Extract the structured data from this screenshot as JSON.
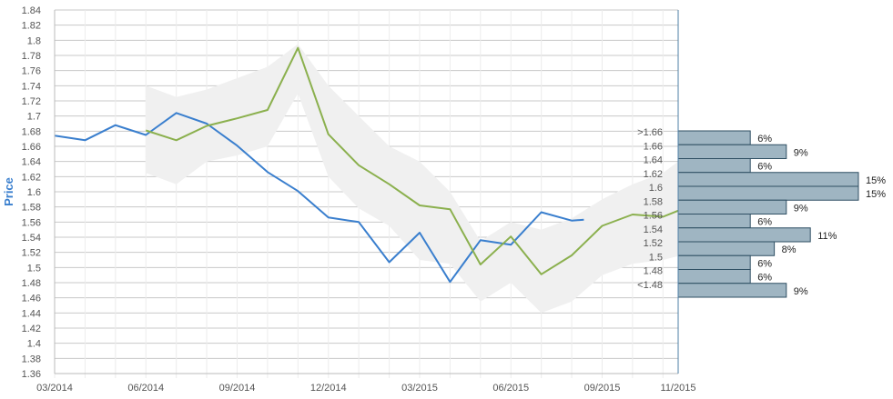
{
  "chart_data": {
    "type": "line",
    "ylabel": "Price",
    "ylim": [
      1.36,
      1.84
    ],
    "y_ticks": [
      "1.36",
      "1.38",
      "1.4",
      "1.42",
      "1.44",
      "1.46",
      "1.48",
      "1.5",
      "1.52",
      "1.54",
      "1.56",
      "1.58",
      "1.6",
      "1.62",
      "1.64",
      "1.66",
      "1.68",
      "1.7",
      "1.72",
      "1.74",
      "1.76",
      "1.78",
      "1.8",
      "1.82",
      "1.84"
    ],
    "x_ticks": [
      "03/2014",
      "06/2014",
      "09/2014",
      "12/2014",
      "03/2015",
      "06/2015",
      "09/2015",
      "11/2015"
    ],
    "x_tick_month_index": [
      0,
      3,
      6,
      9,
      12,
      15,
      18,
      20.5
    ],
    "grid": true,
    "series": [
      {
        "color": "#3a7fce",
        "x_month_index": [
          0,
          1,
          2,
          3,
          4,
          5,
          6,
          7,
          8,
          9,
          10,
          11,
          12,
          13,
          14,
          15,
          16,
          17,
          17.4
        ],
        "values": [
          1.674,
          1.668,
          1.688,
          1.675,
          1.704,
          1.69,
          1.661,
          1.626,
          1.601,
          1.566,
          1.56,
          1.507,
          1.546,
          1.481,
          1.536,
          1.53,
          1.573,
          1.562,
          1.563
        ]
      },
      {
        "color": "#8bb04e",
        "x_month_index": [
          3,
          4,
          5,
          6,
          7,
          8,
          9,
          10,
          11,
          12,
          13,
          14,
          15,
          16,
          17,
          18,
          19,
          20,
          20.5
        ],
        "values": [
          1.681,
          1.668,
          1.687,
          1.697,
          1.708,
          1.79,
          1.676,
          1.635,
          1.61,
          1.582,
          1.577,
          1.504,
          1.541,
          1.491,
          1.516,
          1.555,
          1.57,
          1.567,
          1.575
        ]
      }
    ],
    "band": {
      "color": "#f0f0f0",
      "x_month_index": [
        3,
        4,
        5,
        6,
        7,
        8,
        9,
        10,
        11,
        12,
        13,
        14,
        15,
        16,
        17,
        18,
        19,
        20,
        20.5
      ],
      "upper": [
        1.74,
        1.725,
        1.735,
        1.75,
        1.765,
        1.795,
        1.74,
        1.7,
        1.66,
        1.64,
        1.6,
        1.535,
        1.56,
        1.55,
        1.565,
        1.59,
        1.61,
        1.625,
        1.64
      ],
      "lower": [
        1.625,
        1.61,
        1.64,
        1.648,
        1.66,
        1.73,
        1.62,
        1.578,
        1.555,
        1.51,
        1.505,
        1.455,
        1.48,
        1.44,
        1.455,
        1.49,
        1.505,
        1.51,
        1.515
      ]
    },
    "histogram": {
      "color": "#9fb5c2",
      "bins": [
        {
          "label": ">1.66",
          "percent": "6%",
          "value": 6
        },
        {
          "label": "1.66",
          "percent": "9%",
          "value": 9
        },
        {
          "label": "1.64",
          "percent": "6%",
          "value": 6
        },
        {
          "label": "1.62",
          "percent": "15%",
          "value": 15
        },
        {
          "label": "1.6",
          "percent": "15%",
          "value": 15
        },
        {
          "label": "1.58",
          "percent": "9%",
          "value": 9
        },
        {
          "label": "1.56",
          "percent": "6%",
          "value": 6
        },
        {
          "label": "1.54",
          "percent": "11%",
          "value": 11
        },
        {
          "label": "1.52",
          "percent": "8%",
          "value": 8
        },
        {
          "label": "1.5",
          "percent": "6%",
          "value": 6
        },
        {
          "label": "1.48",
          "percent": "6%",
          "value": 6
        },
        {
          "label": "<1.48",
          "percent": "9%",
          "value": 9
        }
      ]
    }
  }
}
